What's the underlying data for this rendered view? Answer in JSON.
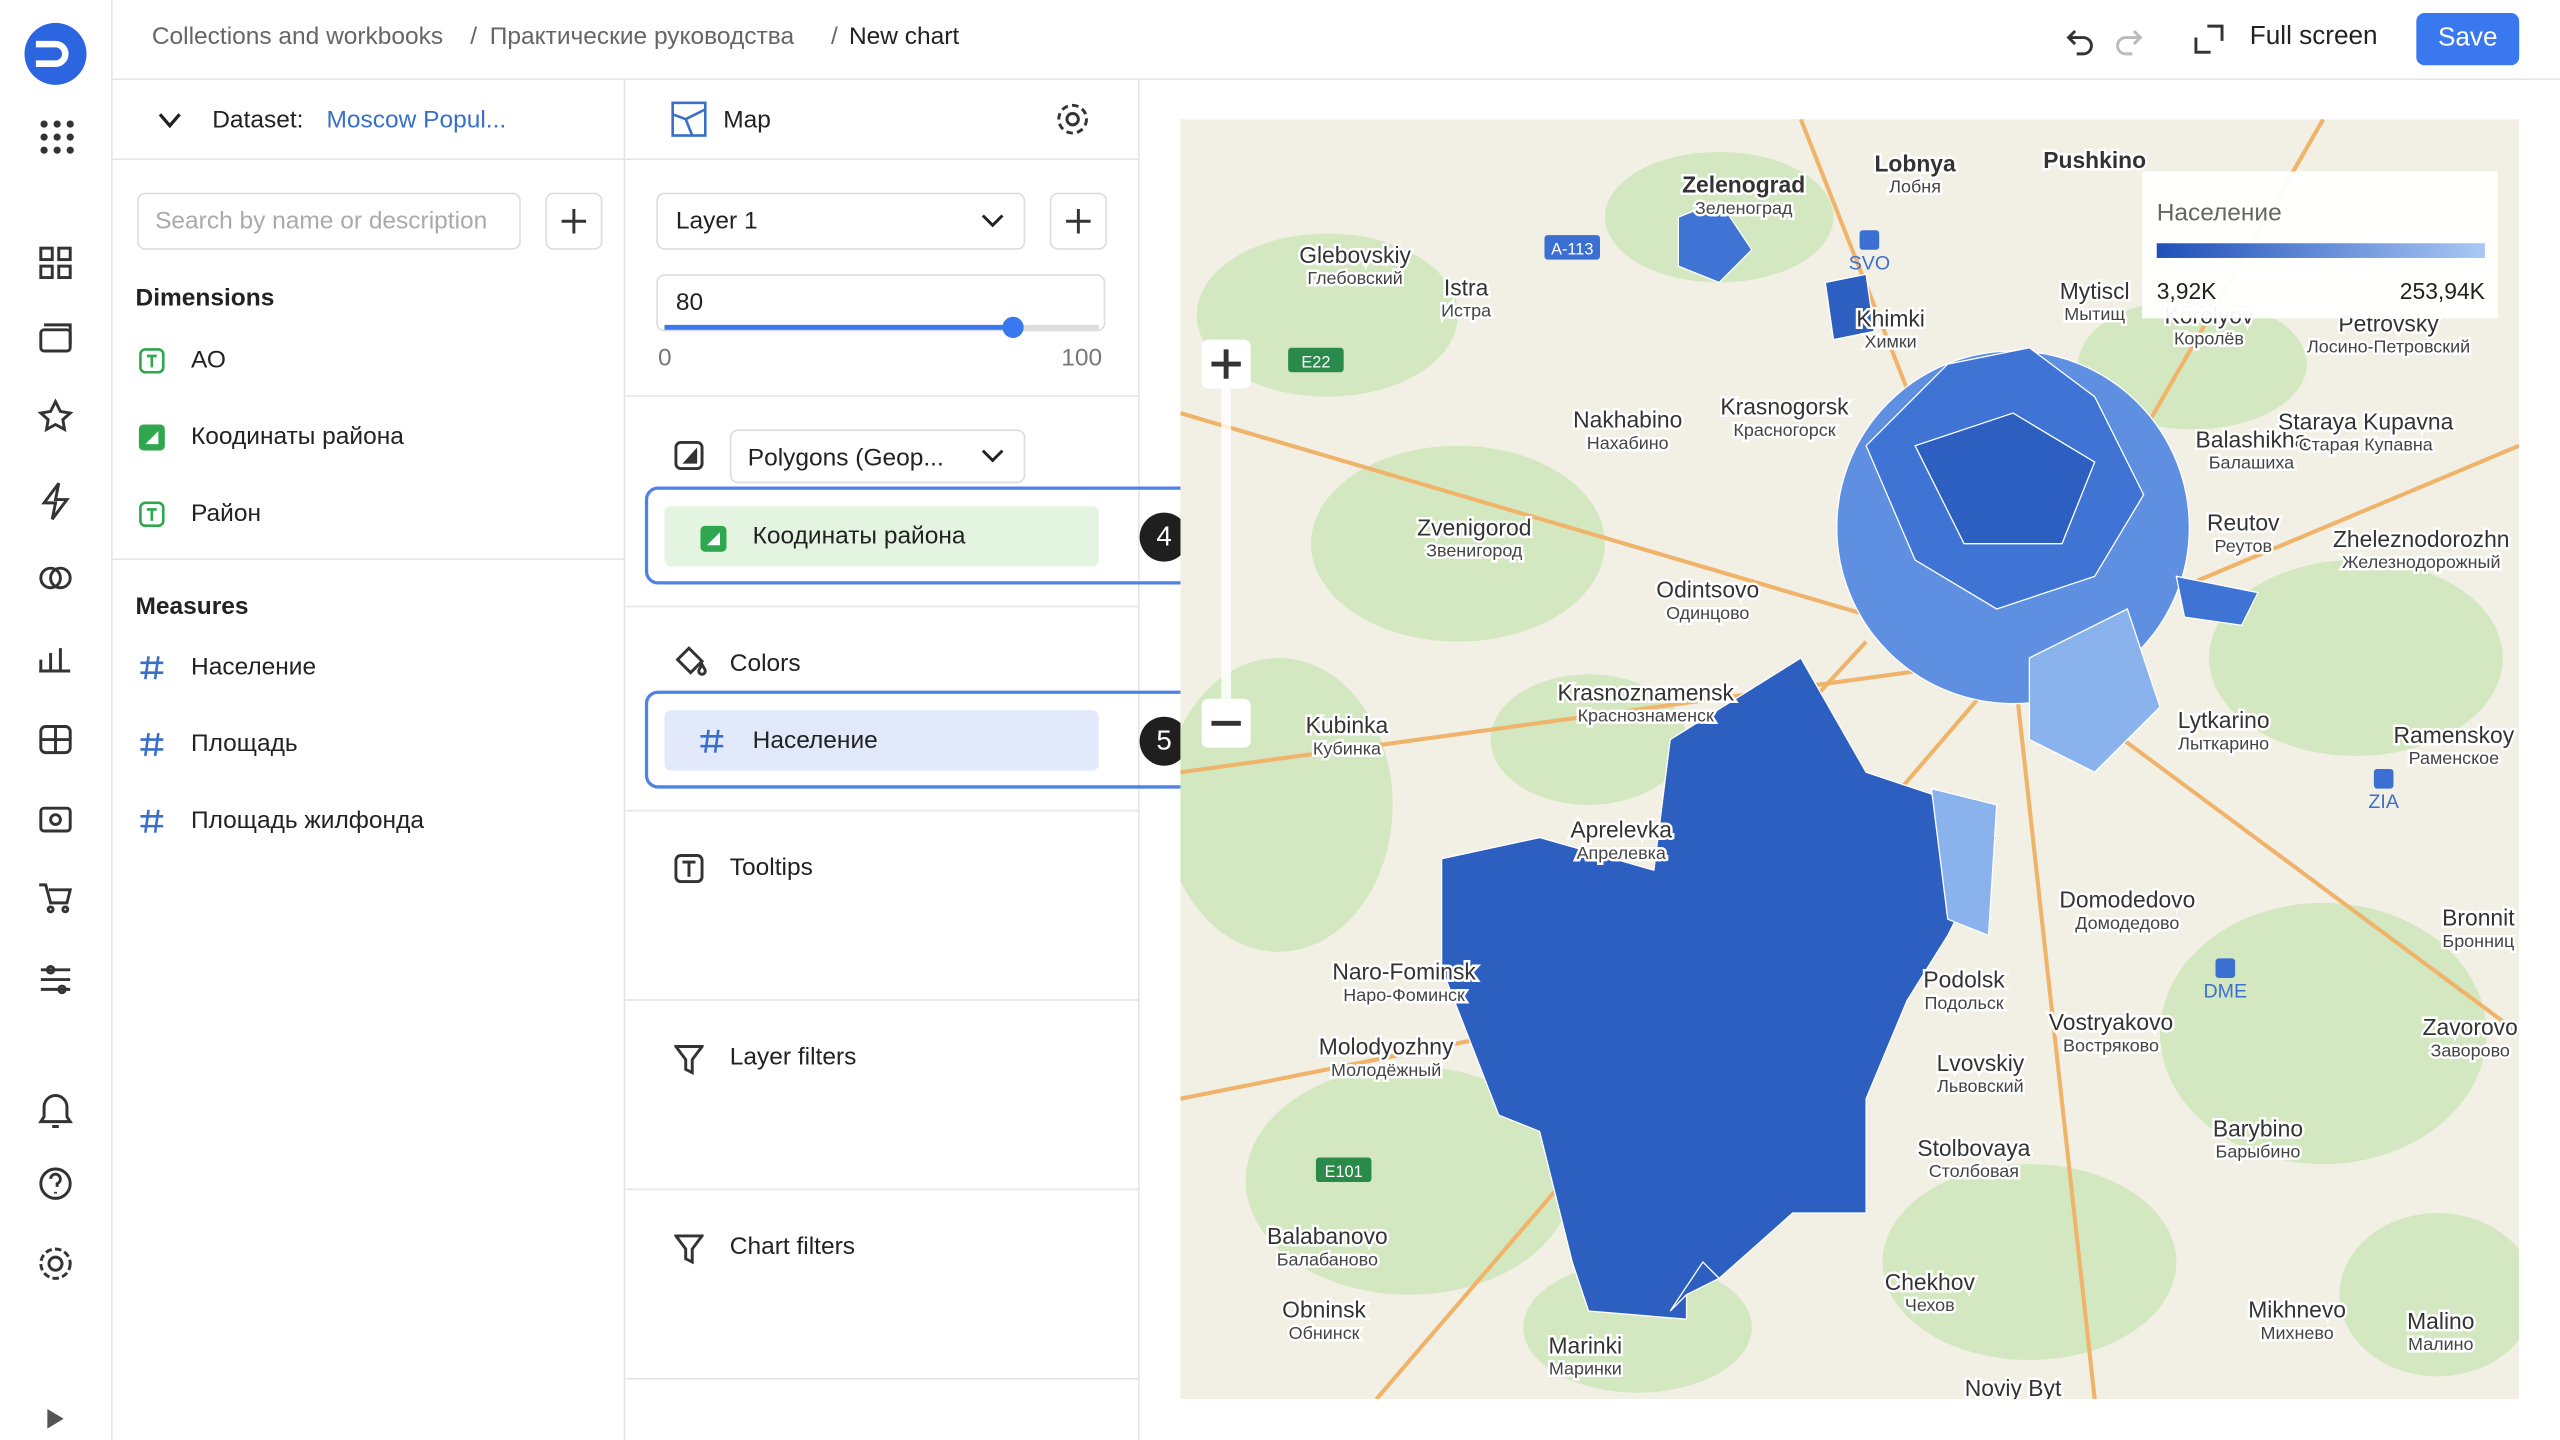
{
  "header": {
    "breadcrumbs": [
      "Collections and workbooks",
      "Практические руководства",
      "New chart"
    ],
    "separator": "/",
    "full_screen": "Full screen",
    "save": "Save"
  },
  "dataset_panel": {
    "label": "Dataset:",
    "dataset": "Moscow Popul...",
    "search_placeholder": "Search by name or description",
    "dimensions_title": "Dimensions",
    "dimensions": [
      "АО",
      "Коодинаты района",
      "Район"
    ],
    "measures_title": "Measures",
    "measures": [
      "Население",
      "Площадь",
      "Площадь жилфонда"
    ]
  },
  "config_panel": {
    "visualization": "Map",
    "layer": "Layer 1",
    "opacity": {
      "value": 80,
      "min": 0,
      "max": 100
    },
    "geometry_type": "Polygons (Geop...",
    "geometry_field": "Коодинаты района",
    "geometry_badge": "4",
    "colors_title": "Colors",
    "color_field": "Население",
    "color_badge": "5",
    "tooltips_title": "Tooltips",
    "layer_filters_title": "Layer filters",
    "chart_filters_title": "Chart filters"
  },
  "map": {
    "legend": {
      "title": "Население",
      "min": "3,92K",
      "max": "253,94K"
    },
    "labels": [
      {
        "name": "Zelenograd",
        "sub": "Зеленоград"
      },
      {
        "name": "Lobnya",
        "sub": "Лобня"
      },
      {
        "name": "Pushkino"
      },
      {
        "name": "Glebovskiy",
        "sub": "Глебовский"
      },
      {
        "name": "Istra",
        "sub": "Истра"
      },
      {
        "name": "Khimki",
        "sub": "Химки"
      },
      {
        "name": "Mytiscl",
        "sub": "Мытищ"
      },
      {
        "name": "Korolyov",
        "sub": "Королёв"
      },
      {
        "name": "Petrovsky",
        "sub": "Лосино-Петровский"
      },
      {
        "name": "Nakhabino",
        "sub": "Нахабино"
      },
      {
        "name": "Krasnogorsk",
        "sub": "Красногорск"
      },
      {
        "name": "Balashikha",
        "sub": "Балашиха"
      },
      {
        "name": "Staraya Kupavna",
        "sub": "Старая Купавна"
      },
      {
        "name": "Zvenigorod",
        "sub": "Звенигород"
      },
      {
        "name": "Reutov",
        "sub": "Реутов"
      },
      {
        "name": "Zheleznodorozhn",
        "sub": "Железнодорожный"
      },
      {
        "name": "Odintsovo",
        "sub": "Одинцово"
      },
      {
        "name": "Krasnoznamensk",
        "sub": "Краснознаменск"
      },
      {
        "name": "Kubinka",
        "sub": "Кубинка"
      },
      {
        "name": "Lytkarino",
        "sub": "Лыткарино"
      },
      {
        "name": "Ramenskoy",
        "sub": "Раменское"
      },
      {
        "name": "Aprelevka",
        "sub": "Апрелевка"
      },
      {
        "name": "Domodedovo",
        "sub": "Домодедово"
      },
      {
        "name": "Naro-Fominsk",
        "sub": "Наро-Фоминск"
      },
      {
        "name": "Podolsk",
        "sub": "Подольск"
      },
      {
        "name": "Bronnit",
        "sub": "Бронниц"
      },
      {
        "name": "Molodyozhny",
        "sub": "Молодёжный"
      },
      {
        "name": "Vostryakovo",
        "sub": "Востряково"
      },
      {
        "name": "Zavorovo",
        "sub": "Заворово"
      },
      {
        "name": "Lvovskiy",
        "sub": "Львовский"
      },
      {
        "name": "Stolbovaya",
        "sub": "Столбовая"
      },
      {
        "name": "Barybino",
        "sub": "Барыбино"
      },
      {
        "name": "Balabanovo",
        "sub": "Балабаново"
      },
      {
        "name": "Obninsk",
        "sub": "Обнинск"
      },
      {
        "name": "Chekhov",
        "sub": "Чехов"
      },
      {
        "name": "Mikhnevo",
        "sub": "Михнево"
      },
      {
        "name": "Malino",
        "sub": "Малино"
      },
      {
        "name": "Marinki",
        "sub": "Маринки"
      },
      {
        "name": "Noviy Byt"
      }
    ],
    "shields": [
      "A-113",
      "E22",
      "E101"
    ],
    "airports": [
      "SVO",
      "ZIA",
      "DME"
    ]
  }
}
